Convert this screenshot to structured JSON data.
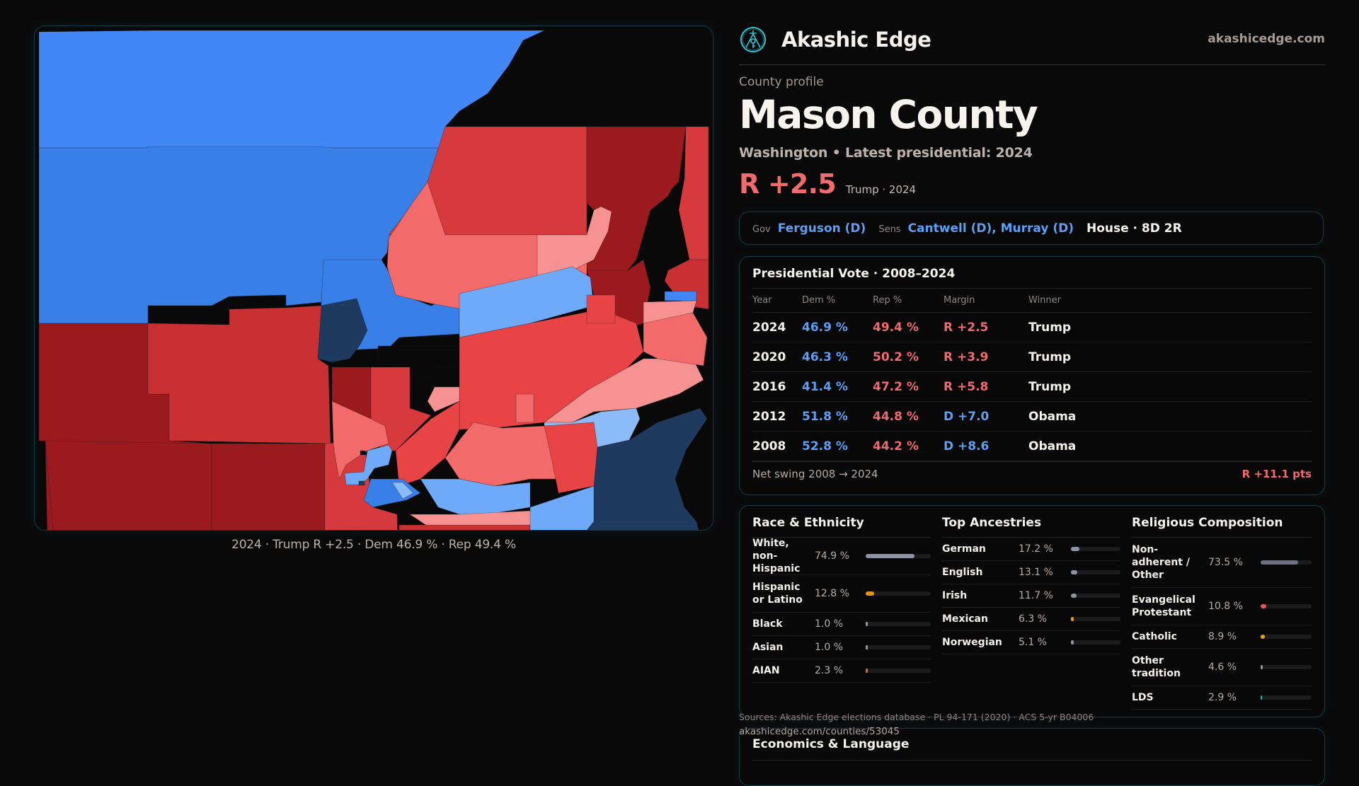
{
  "brand": {
    "name": "Akashic Edge",
    "domain": "akashicedge.com",
    "logo_icon": "compass-key-emblem-icon",
    "accent": "#35c8d8"
  },
  "profile": {
    "eyebrow": "County profile",
    "title": "Mason County",
    "subtitle": "Washington • Latest presidential: 2024",
    "margin": "R +2.5",
    "margin_detail": "Trump · 2024",
    "margin_color": "#f06a6e"
  },
  "officials": {
    "gov_label": "Gov",
    "gov_value": "Ferguson (D)",
    "sens_label": "Sens",
    "sens_value": "Cantwell (D), Murray (D)",
    "house_value": "House · 8D 2R"
  },
  "presidential": {
    "title": "Presidential Vote · 2008–2024",
    "columns": [
      "Year",
      "Dem %",
      "Rep %",
      "Margin",
      "Winner"
    ],
    "rows": [
      {
        "year": "2024",
        "dem": "46.9 %",
        "rep": "49.4 %",
        "margin": "R +2.5",
        "party": "R",
        "winner": "Trump"
      },
      {
        "year": "2020",
        "dem": "46.3 %",
        "rep": "50.2 %",
        "margin": "R +3.9",
        "party": "R",
        "winner": "Trump"
      },
      {
        "year": "2016",
        "dem": "41.4 %",
        "rep": "47.2 %",
        "margin": "R +5.8",
        "party": "R",
        "winner": "Trump"
      },
      {
        "year": "2012",
        "dem": "51.8 %",
        "rep": "44.8 %",
        "margin": "D +7.0",
        "party": "D",
        "winner": "Obama"
      },
      {
        "year": "2008",
        "dem": "52.8 %",
        "rep": "44.2 %",
        "margin": "D +8.6",
        "party": "D",
        "winner": "Obama"
      }
    ],
    "swing_label": "Net swing 2008 → 2024",
    "swing_value": "R +11.1 pts"
  },
  "demographics": {
    "race": {
      "title": "Race & Ethnicity",
      "items": [
        {
          "label": "White, non-Hispanic",
          "pct": "74.9 %",
          "value": 74.9,
          "color": "#8c94a6"
        },
        {
          "label": "Hispanic or Latino",
          "pct": "12.8 %",
          "value": 12.8,
          "color": "#e3921c"
        },
        {
          "label": "Black",
          "pct": "1.0 %",
          "value": 1.0,
          "color": "#8c94a6"
        },
        {
          "label": "Asian",
          "pct": "1.0 %",
          "value": 1.0,
          "color": "#8c94a6"
        },
        {
          "label": "AIAN",
          "pct": "2.3 %",
          "value": 2.3,
          "color": "#d0701c"
        }
      ]
    },
    "ancestry": {
      "title": "Top Ancestries",
      "items": [
        {
          "label": "German",
          "pct": "17.2 %",
          "value": 17.2,
          "color": "#8c94a6"
        },
        {
          "label": "English",
          "pct": "13.1 %",
          "value": 13.1,
          "color": "#8c94a6"
        },
        {
          "label": "Irish",
          "pct": "11.7 %",
          "value": 11.7,
          "color": "#8c94a6"
        },
        {
          "label": "Mexican",
          "pct": "6.3 %",
          "value": 6.3,
          "color": "#e3921c"
        },
        {
          "label": "Norwegian",
          "pct": "5.1 %",
          "value": 5.1,
          "color": "#8c94a6"
        }
      ]
    },
    "religion": {
      "title": "Religious Composition",
      "items": [
        {
          "label": "Non-adherent / Other",
          "pct": "73.5 %",
          "value": 73.5,
          "color": "#6e7280"
        },
        {
          "label": "Evangelical Protestant",
          "pct": "10.8 %",
          "value": 10.8,
          "color": "#e0585c"
        },
        {
          "label": "Catholic",
          "pct": "8.9 %",
          "value": 8.9,
          "color": "#e0a21c"
        },
        {
          "label": "Other tradition",
          "pct": "4.6 %",
          "value": 4.6,
          "color": "#8c94a6"
        },
        {
          "label": "LDS",
          "pct": "2.9 %",
          "value": 2.9,
          "color": "#2fb8a8"
        }
      ]
    }
  },
  "footer": {
    "sources": "Sources: Akashic Edge elections database · PL 94-171 (2020) · ACS 5-yr B04006",
    "url": "akashicedge.com/counties/53045"
  },
  "economics": {
    "title": "Economics & Language"
  },
  "map": {
    "caption": "2024 · Trump R +2.5 · Dem 46.9 % · Rep 49.4 %",
    "palette": {
      "safe_d": "#4287f5",
      "likely_d": "#387fe8",
      "strong_d": "#1f3a5f",
      "navy_d": "#26538f",
      "lean_d": "#6eaaf7",
      "tilt_d": "#8cbcf8",
      "strong_r": "#9a1a1e",
      "likely_r": "#c93032",
      "solid_r": "#d63a3c",
      "mid_r": "#e84446",
      "lean_r": "#f26a6a",
      "tilt_r": "#f69292",
      "nodata": "#0a090a"
    }
  }
}
